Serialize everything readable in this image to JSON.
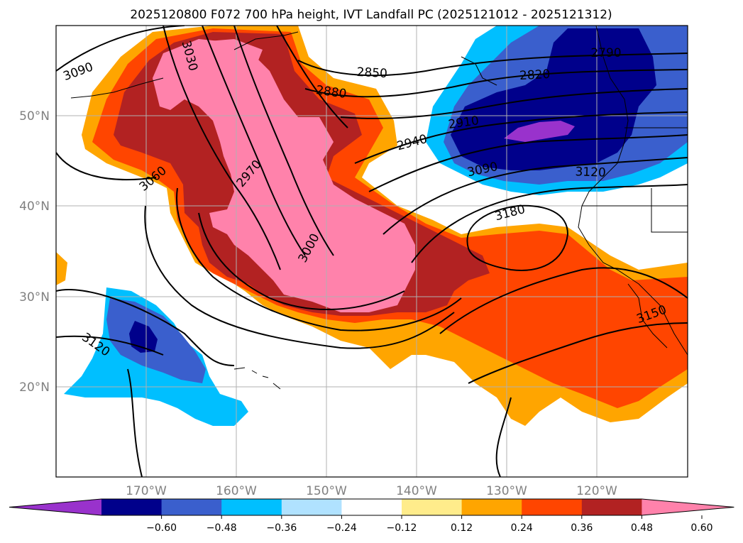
{
  "title": "2025120800 F072 700 hPa height, IVT Landfall PC (2025121012 - 2025121312)",
  "map": {
    "lat_ticks": [
      "50°N",
      "40°N",
      "30°N",
      "20°N"
    ],
    "lon_ticks": [
      "170°W",
      "160°W",
      "150°W",
      "140°W",
      "130°W",
      "120°W"
    ],
    "contour_labels": [
      "3090",
      "3030",
      "2850",
      "2880",
      "2790",
      "2820",
      "2910",
      "2940",
      "2970",
      "3060",
      "3000",
      "3090",
      "3120",
      "3180",
      "3150",
      "3120"
    ]
  },
  "colorbar": {
    "ticks": [
      "−0.60",
      "−0.48",
      "−0.36",
      "−0.24",
      "−0.12",
      "0.12",
      "0.24",
      "0.36",
      "0.48",
      "0.60"
    ],
    "colors": [
      "#9932cc",
      "#00008b",
      "#3a5fcd",
      "#00bfff",
      "#b0e2ff",
      "#ffffff",
      "#ffec8b",
      "#ffa500",
      "#ff4500",
      "#b22222",
      "#ff82ab"
    ]
  }
}
